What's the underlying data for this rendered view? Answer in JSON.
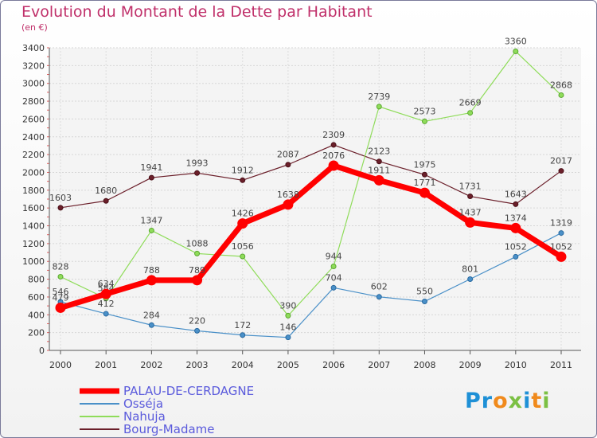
{
  "title": "Evolution du Montant de la Dette par Habitant",
  "unit_label": "(en €)",
  "logo": {
    "text": "Proxiti",
    "colors": [
      "#1e90d6",
      "#f08a1c",
      "#7bc043"
    ]
  },
  "chart_data": {
    "type": "line",
    "title": "Evolution du Montant de la Dette par Habitant",
    "ylabel": "(en €)",
    "xlabel": "",
    "ylim": [
      0,
      3400
    ],
    "yticks": [
      0,
      200,
      400,
      600,
      800,
      1000,
      1200,
      1400,
      1600,
      1800,
      2000,
      2200,
      2400,
      2600,
      2800,
      3000,
      3200,
      3400
    ],
    "grid": true,
    "legend_position": "bottom-left",
    "x": [
      "2000",
      "2001",
      "2002",
      "2003",
      "2004",
      "2005",
      "2006",
      "2007",
      "2008",
      "2009",
      "2010",
      "2011"
    ],
    "series": [
      {
        "name": "Bourg-Madame",
        "color": "#6b1f2a",
        "values": [
          1603,
          1680,
          1941,
          1993,
          1912,
          2087,
          2309,
          2123,
          1975,
          1731,
          1643,
          2017
        ]
      },
      {
        "name": "Nahuja",
        "color": "#8fdc5a",
        "values": [
          828,
          584,
          1347,
          1088,
          1056,
          390,
          944,
          2739,
          2573,
          2669,
          3360,
          2868
        ]
      },
      {
        "name": "Osséja",
        "color": "#4a90c8",
        "values": [
          546,
          412,
          284,
          220,
          172,
          146,
          704,
          602,
          550,
          801,
          1052,
          1319
        ]
      },
      {
        "name": "PALAU-DE-CERDAGNE",
        "color": "#ff0000",
        "values": [
          479,
          634,
          788,
          789,
          1426,
          1638,
          2076,
          1911,
          1771,
          1437,
          1374,
          1052
        ]
      }
    ]
  }
}
